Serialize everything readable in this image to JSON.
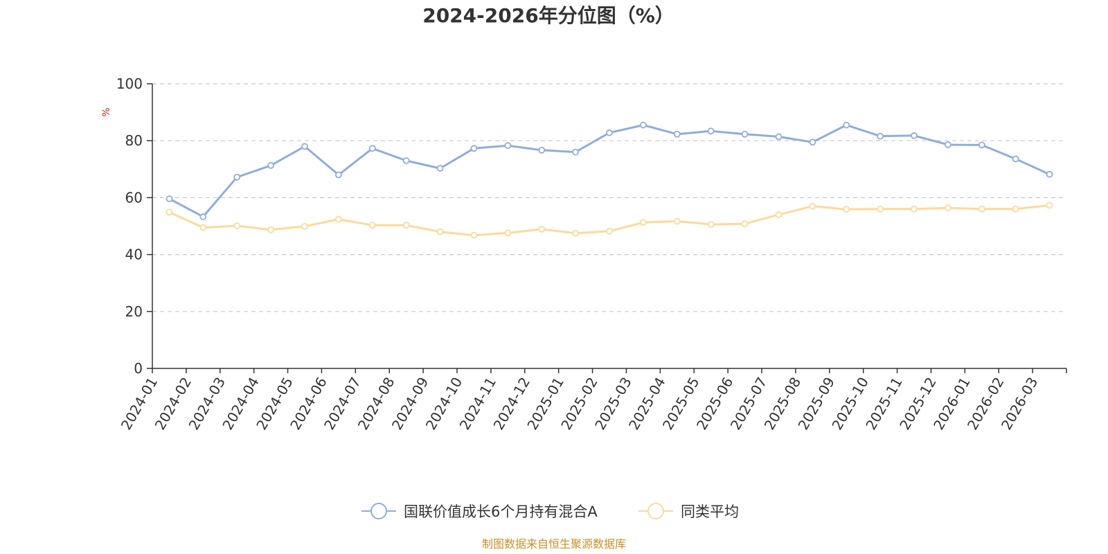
{
  "chart_data": {
    "type": "line",
    "title": "2024-2026年分位图（%）",
    "ylabel": "%",
    "xlabel": "",
    "ylim": [
      0,
      100
    ],
    "yticks": [
      0,
      20,
      40,
      60,
      80,
      100
    ],
    "grid": true,
    "legend_position": "bottom-center",
    "categories": [
      "2024-01",
      "2024-02",
      "2024-03",
      "2024-04",
      "2024-05",
      "2024-06",
      "2024-07",
      "2024-08",
      "2024-09",
      "2024-10",
      "2024-11",
      "2024-12",
      "2025-01",
      "2025-02",
      "2025-03",
      "2025-04",
      "2025-05",
      "2025-06",
      "2025-07",
      "2025-08",
      "2025-09",
      "2025-10",
      "2025-11",
      "2025-12",
      "2026-01",
      "2026-02",
      "2026-03"
    ],
    "series": [
      {
        "name": "国联价值成长6个月持有混合A",
        "color": "#8fadd9",
        "values": [
          59.6,
          53.3,
          67.2,
          71.3,
          78.0,
          68.0,
          77.3,
          73.0,
          70.3,
          77.3,
          78.3,
          76.7,
          76.0,
          82.8,
          85.5,
          82.3,
          83.4,
          82.3,
          81.4,
          79.5,
          85.5,
          81.6,
          81.8,
          78.6,
          78.5,
          73.6,
          68.2
        ]
      },
      {
        "name": "同类平均",
        "color": "#fdd99a",
        "values": [
          54.9,
          49.5,
          50.1,
          48.7,
          49.9,
          52.4,
          50.3,
          50.3,
          48.0,
          46.8,
          47.6,
          48.9,
          47.5,
          48.2,
          51.3,
          51.7,
          50.6,
          50.8,
          54.0,
          57.0,
          55.9,
          56.0,
          56.0,
          56.4,
          56.0,
          56.0,
          57.3
        ]
      }
    ],
    "source": "制图数据来自恒生聚源数据库",
    "source_color": "#c8902a",
    "ylabel_color": "#e0201b"
  }
}
